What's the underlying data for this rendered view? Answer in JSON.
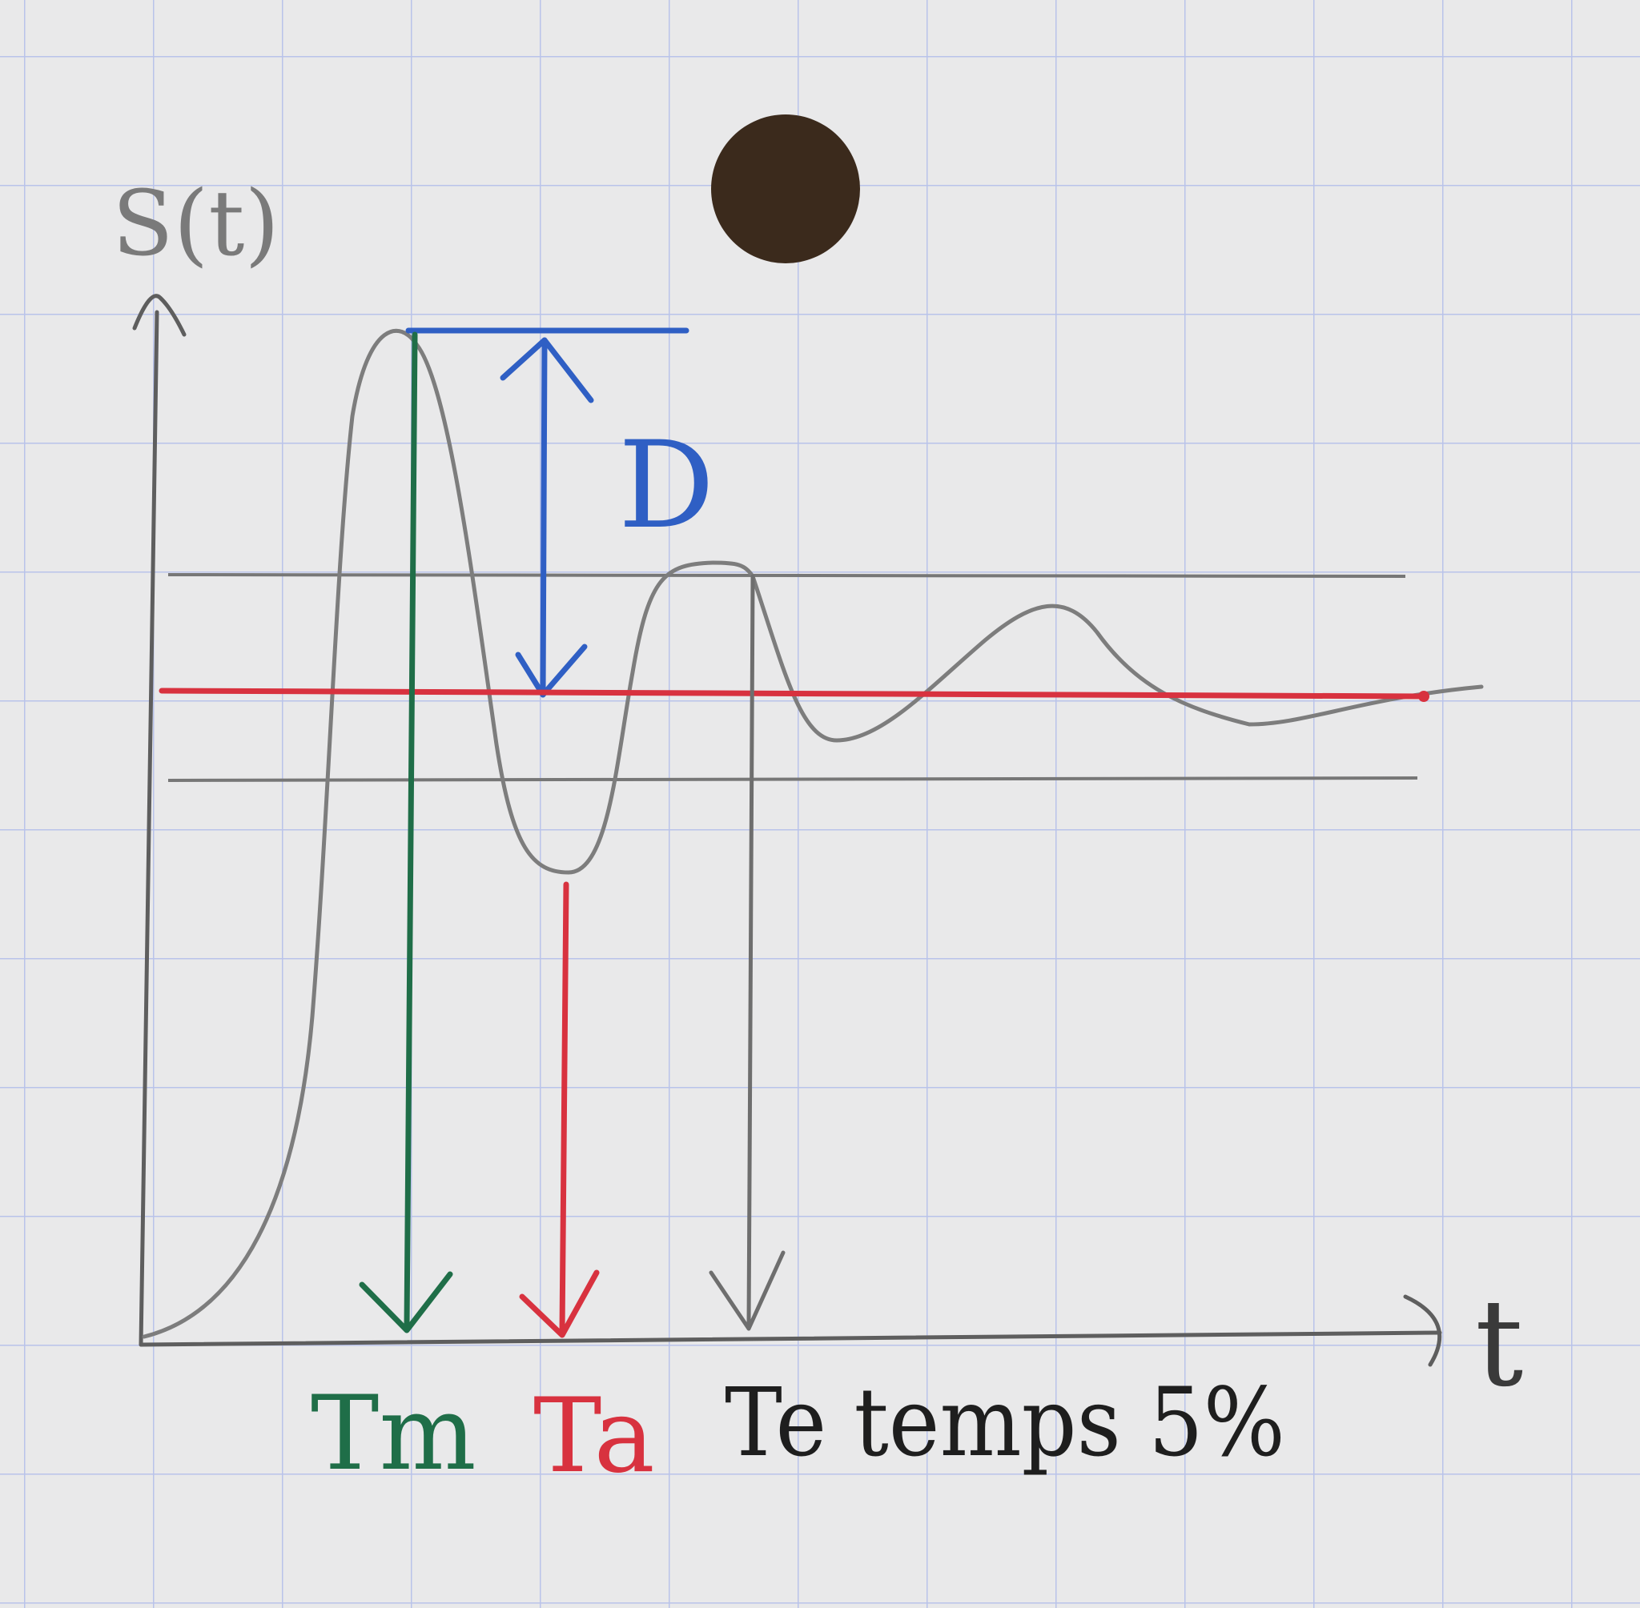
{
  "labels": {
    "y_axis": "S(t)",
    "x_axis": "t",
    "overshoot": "D",
    "tm": "Tm",
    "ta": "Ta",
    "te": "Te temps 5%"
  },
  "colors": {
    "paper": "#e9e9ea",
    "grid": "#b9c3ea",
    "pencil": "#7d7d7d",
    "axis": "#5e5e5e",
    "blue": "#2f5fc4",
    "red": "#d8323f",
    "green": "#1f6e48",
    "hole": "#3b2a1c",
    "ink": "#1e1e1e"
  }
}
